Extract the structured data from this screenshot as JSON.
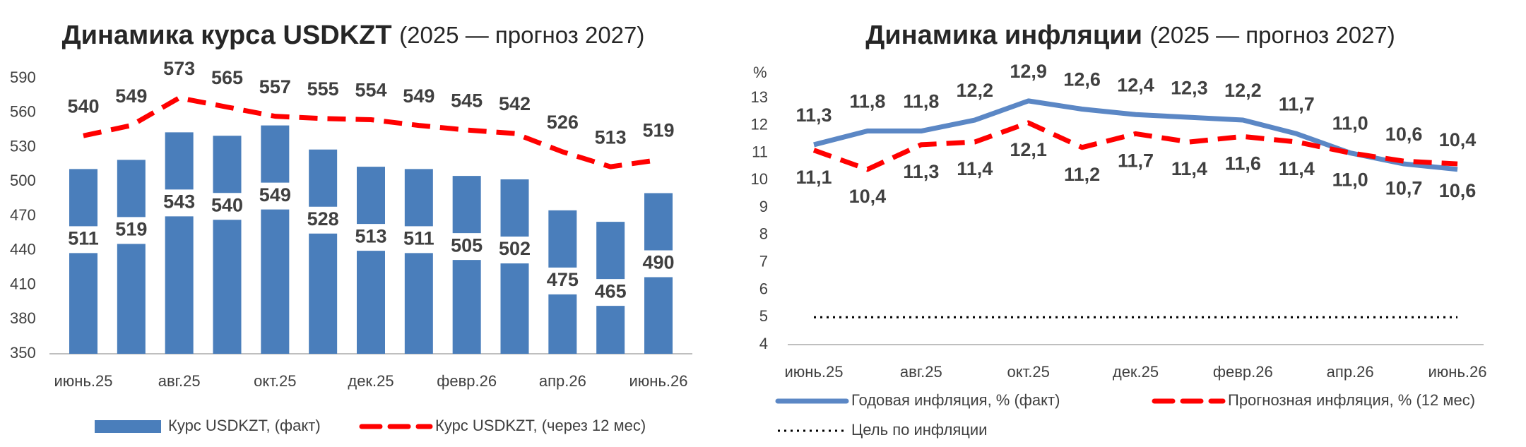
{
  "chart_data": [
    {
      "type": "combo",
      "title": "Динамика курса USDKZT",
      "subtitle": "(2025 — прогноз 2027)",
      "categories": [
        "июнь.25",
        null,
        "авг.25",
        null,
        "окт.25",
        null,
        "дек.25",
        null,
        "февр.26",
        null,
        "апр.26",
        null,
        "июнь.26"
      ],
      "ylim": [
        350,
        590
      ],
      "yticks": [
        350,
        380,
        410,
        440,
        470,
        500,
        530,
        560,
        590
      ],
      "series": [
        {
          "name": "Курс USDKZT, (факт)",
          "type": "bar",
          "color": "#4a7ebb",
          "values": [
            511,
            519,
            543,
            540,
            549,
            528,
            513,
            511,
            505,
            502,
            475,
            465,
            490
          ]
        },
        {
          "name": "Курс USDKZT, (через 12 мес)",
          "type": "line",
          "style": "dashed",
          "color": "#ff0000",
          "values": [
            540,
            549,
            573,
            565,
            557,
            555,
            554,
            549,
            545,
            542,
            526,
            513,
            519
          ]
        }
      ]
    },
    {
      "type": "line",
      "title": "Динамика инфляции",
      "subtitle": "(2025 — прогноз 2027)",
      "y_label": "%",
      "categories": [
        "июнь.25",
        null,
        "авг.25",
        null,
        "окт.25",
        null,
        "дек.25",
        null,
        "февр.26",
        null,
        "апр.26",
        null,
        "июнь.26"
      ],
      "ylim": [
        4,
        13
      ],
      "yticks": [
        4,
        5,
        6,
        7,
        8,
        9,
        10,
        11,
        12,
        13
      ],
      "series": [
        {
          "name": "Годовая инфляция, % (факт)",
          "style": "solid",
          "color": "#5b87c5",
          "values": [
            11.3,
            11.8,
            11.8,
            12.2,
            12.9,
            12.6,
            12.4,
            12.3,
            12.2,
            11.7,
            11.0,
            10.6,
            10.4
          ],
          "value_labels": [
            "11,3",
            "11,8",
            "11,8",
            "12,2",
            "12,9",
            "12,6",
            "12,4",
            "12,3",
            "12,2",
            "11,7",
            "11,0",
            "10,6",
            "10,4"
          ]
        },
        {
          "name": "Прогнозная инфляция, % (12 мес)",
          "style": "dashed",
          "color": "#ff0000",
          "values": [
            11.1,
            10.4,
            11.3,
            11.4,
            12.1,
            11.2,
            11.7,
            11.4,
            11.6,
            11.4,
            11.0,
            10.7,
            10.6
          ],
          "value_labels": [
            "11,1",
            "10,4",
            "11,3",
            "11,4",
            "12,1",
            "11,2",
            "11,7",
            "11,4",
            "11,6",
            "11,4",
            "11,0",
            "10,7",
            "10,6"
          ]
        },
        {
          "name": "Цель по инфляции",
          "style": "dotted",
          "color": "#000000",
          "values": [
            5,
            5,
            5,
            5,
            5,
            5,
            5,
            5,
            5,
            5,
            5,
            5,
            5
          ]
        }
      ]
    }
  ]
}
